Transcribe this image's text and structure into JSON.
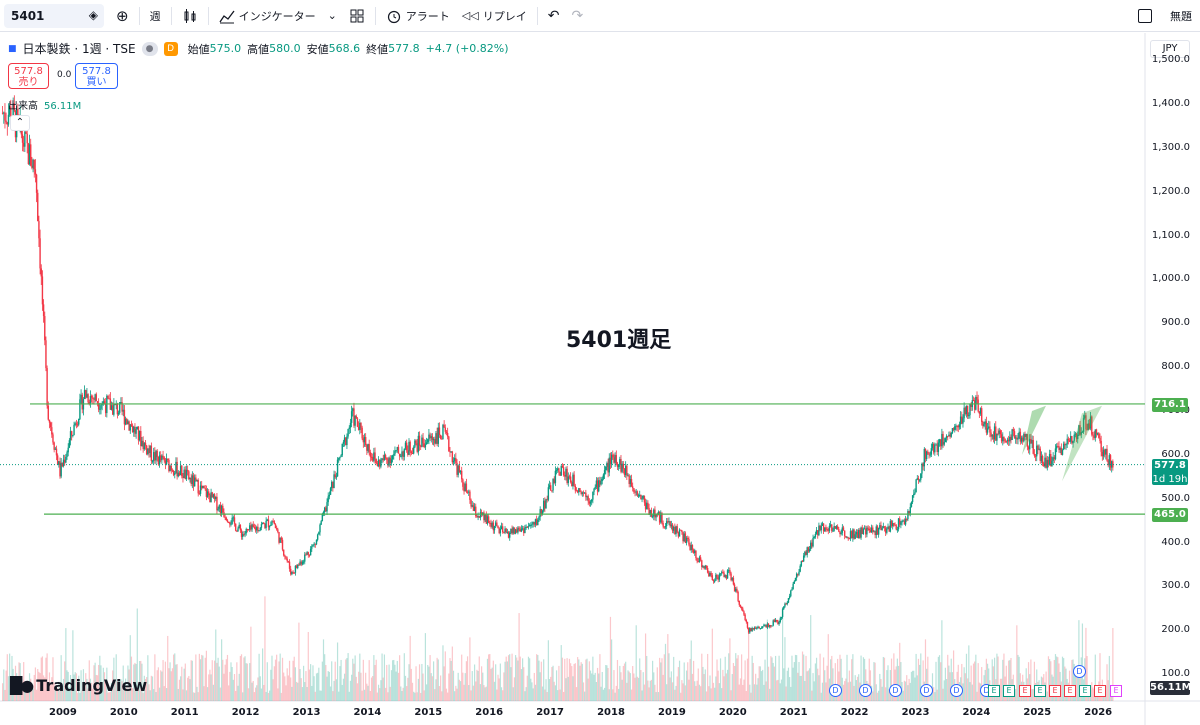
{
  "toolbar": {
    "symbol": "5401",
    "interval": "週",
    "indicators": "インジケーター",
    "alert": "アラート",
    "replay": "リプレイ",
    "right_label": "無題"
  },
  "legend": {
    "title": "日本製鉄 · 1週 · TSE",
    "d_badge": "D",
    "open_label": "始値",
    "open": "575.0",
    "high_label": "高値",
    "high": "580.0",
    "low_label": "安値",
    "low": "568.6",
    "close_label": "終値",
    "close": "577.8",
    "change": "+4.7 (+0.82%)"
  },
  "trade": {
    "sell_price": "577.8",
    "sell_label": "売り",
    "spread": "0.0",
    "buy_price": "577.8",
    "buy_label": "買い"
  },
  "volume": {
    "label": "出来高",
    "value": "56.11M"
  },
  "chart_title": "5401週足",
  "currency": "JPY",
  "price_axis": [
    "1,500.0",
    "1,400.0",
    "1,300.0",
    "1,200.0",
    "1,100.0",
    "1,000.0",
    "900.0",
    "800.0",
    "700.0",
    "600.0",
    "500.0",
    "400.0",
    "300.0",
    "200.0",
    "100.0"
  ],
  "tags": {
    "resistance": "716.1",
    "current": "577.8",
    "countdown": "1d 19h",
    "support": "465.0",
    "volume": "56.11M"
  },
  "years": [
    "2009",
    "2010",
    "2011",
    "2012",
    "2013",
    "2014",
    "2015",
    "2016",
    "2017",
    "2018",
    "2019",
    "2020",
    "2021",
    "2022",
    "2023",
    "2024",
    "2025",
    "2026"
  ],
  "logo": "TradingView",
  "colors": {
    "up": "#089981",
    "down": "#f23645",
    "hline": "#4caf50",
    "axis": "#131722"
  },
  "chart_data": {
    "type": "candlestick",
    "title": "5401週足",
    "x_range": [
      "2008",
      "2026"
    ],
    "ylim": [
      100,
      1500
    ],
    "horizontal_lines": [
      716.1,
      465.0
    ],
    "last_close": 577.8,
    "approx_close_by_year": [
      {
        "x": 2008.2,
        "y": 1380
      },
      {
        "x": 2008.6,
        "y": 1250
      },
      {
        "x": 2008.8,
        "y": 700
      },
      {
        "x": 2009.0,
        "y": 560
      },
      {
        "x": 2009.4,
        "y": 740
      },
      {
        "x": 2010.0,
        "y": 700
      },
      {
        "x": 2010.5,
        "y": 600
      },
      {
        "x": 2011.0,
        "y": 560
      },
      {
        "x": 2011.5,
        "y": 500
      },
      {
        "x": 2012.0,
        "y": 420
      },
      {
        "x": 2012.5,
        "y": 450
      },
      {
        "x": 2012.8,
        "y": 330
      },
      {
        "x": 2013.2,
        "y": 400
      },
      {
        "x": 2013.8,
        "y": 690
      },
      {
        "x": 2014.2,
        "y": 580
      },
      {
        "x": 2014.8,
        "y": 620
      },
      {
        "x": 2015.3,
        "y": 650
      },
      {
        "x": 2015.8,
        "y": 470
      },
      {
        "x": 2016.3,
        "y": 420
      },
      {
        "x": 2016.8,
        "y": 440
      },
      {
        "x": 2017.2,
        "y": 570
      },
      {
        "x": 2017.7,
        "y": 500
      },
      {
        "x": 2018.1,
        "y": 600
      },
      {
        "x": 2018.7,
        "y": 470
      },
      {
        "x": 2019.2,
        "y": 420
      },
      {
        "x": 2019.7,
        "y": 320
      },
      {
        "x": 2020.0,
        "y": 330
      },
      {
        "x": 2020.3,
        "y": 200
      },
      {
        "x": 2020.8,
        "y": 220
      },
      {
        "x": 2021.2,
        "y": 360
      },
      {
        "x": 2021.5,
        "y": 440
      },
      {
        "x": 2022.0,
        "y": 420
      },
      {
        "x": 2022.5,
        "y": 430
      },
      {
        "x": 2022.9,
        "y": 450
      },
      {
        "x": 2023.2,
        "y": 600
      },
      {
        "x": 2023.7,
        "y": 660
      },
      {
        "x": 2024.0,
        "y": 720
      },
      {
        "x": 2024.3,
        "y": 650
      },
      {
        "x": 2024.8,
        "y": 640
      },
      {
        "x": 2025.2,
        "y": 580
      },
      {
        "x": 2025.6,
        "y": 640
      },
      {
        "x": 2025.9,
        "y": 680
      },
      {
        "x": 2026.1,
        "y": 610
      },
      {
        "x": 2026.3,
        "y": 577.8
      }
    ]
  }
}
